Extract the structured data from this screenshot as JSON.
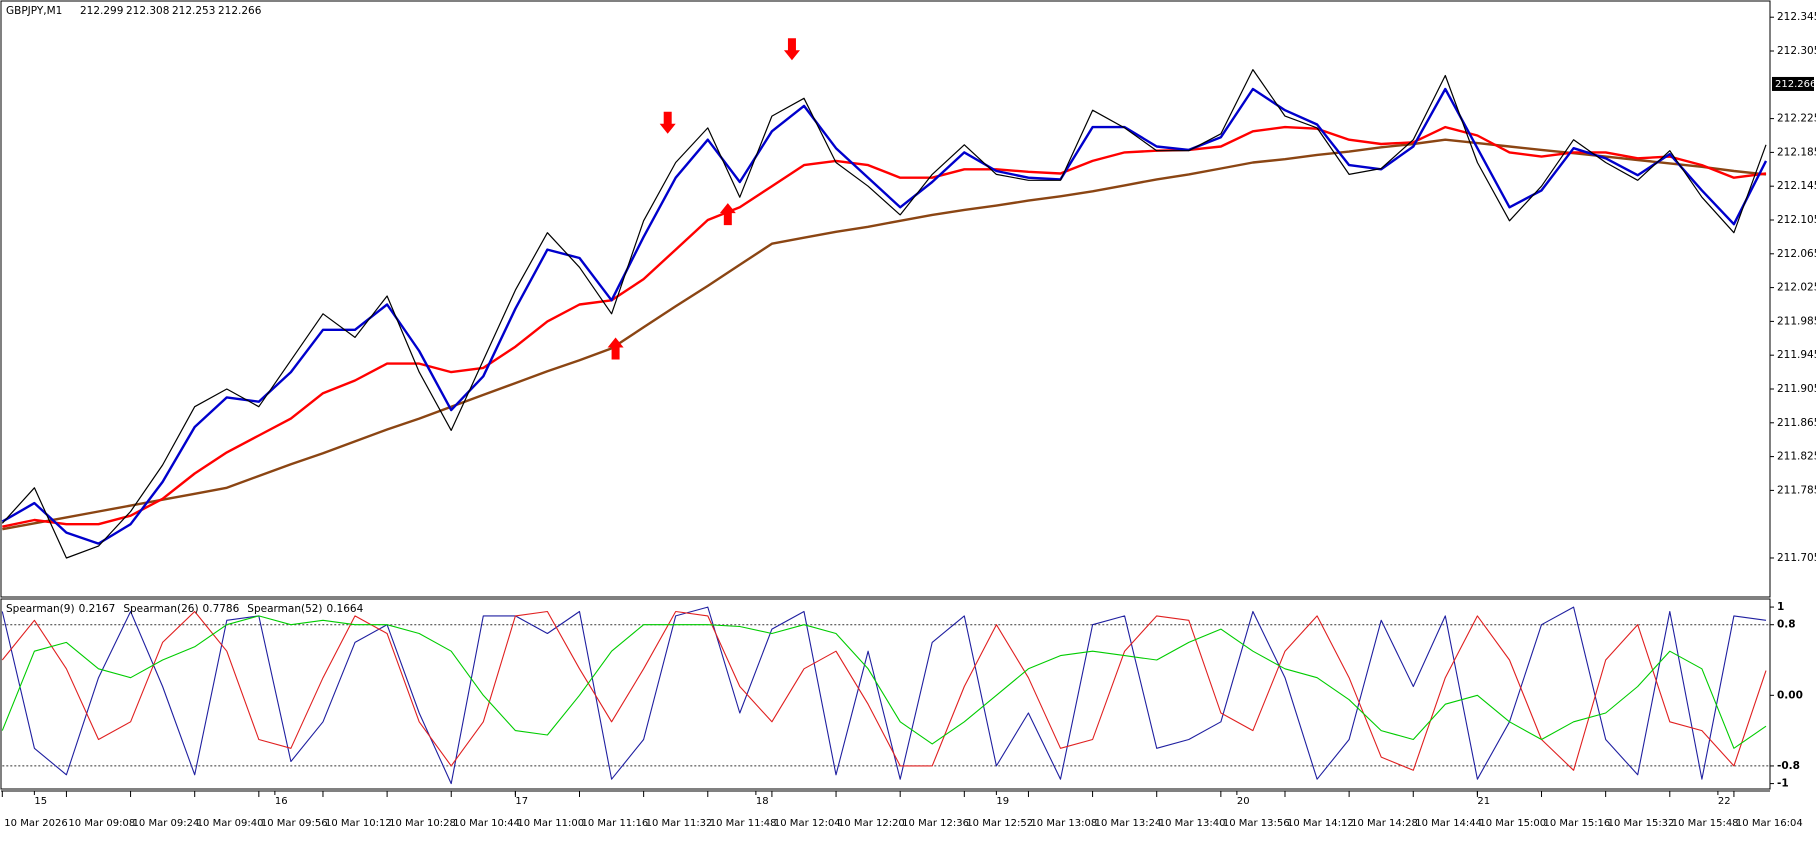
{
  "chart_data": {
    "type": "line",
    "symbol": "GBPJPY,M1",
    "ohlc": [
      212.299,
      212.308,
      212.253,
      212.266
    ],
    "x": [
      0,
      8,
      16,
      24,
      32,
      40,
      48,
      56,
      64,
      72,
      80,
      88,
      96,
      104,
      112,
      120,
      128,
      136,
      144,
      152,
      160,
      168,
      176,
      184,
      192,
      200,
      208,
      216,
      224,
      232,
      240,
      248,
      256,
      264,
      272,
      280,
      288,
      296,
      304,
      312,
      320,
      328,
      336,
      344,
      352,
      360,
      368,
      376,
      384,
      392,
      400,
      408,
      416,
      424,
      432,
      440
    ],
    "xlim": [
      0,
      441
    ],
    "xticks": [
      {
        "value": 0,
        "label": "10 Mar 2026"
      },
      {
        "value": 16,
        "label": "10 Mar 09:08"
      },
      {
        "value": 32,
        "label": "10 Mar 09:24"
      },
      {
        "value": 48,
        "label": "10 Mar 09:40"
      },
      {
        "value": 64,
        "label": "10 Mar 09:56"
      },
      {
        "value": 80,
        "label": "10 Mar 10:12"
      },
      {
        "value": 96,
        "label": "10 Mar 10:28"
      },
      {
        "value": 112,
        "label": "10 Mar 10:44"
      },
      {
        "value": 128,
        "label": "10 Mar 11:00"
      },
      {
        "value": 144,
        "label": "10 Mar 11:16"
      },
      {
        "value": 160,
        "label": "10 Mar 11:32"
      },
      {
        "value": 176,
        "label": "10 Mar 11:48"
      },
      {
        "value": 192,
        "label": "10 Mar 12:04"
      },
      {
        "value": 208,
        "label": "10 Mar 12:20"
      },
      {
        "value": 224,
        "label": "10 Mar 12:36"
      },
      {
        "value": 240,
        "label": "10 Mar 12:52"
      },
      {
        "value": 256,
        "label": "10 Mar 13:08"
      },
      {
        "value": 272,
        "label": "10 Mar 13:24"
      },
      {
        "value": 288,
        "label": "10 Mar 13:40"
      },
      {
        "value": 304,
        "label": "10 Mar 13:56"
      },
      {
        "value": 320,
        "label": "10 Mar 14:12"
      },
      {
        "value": 336,
        "label": "10 Mar 14:28"
      },
      {
        "value": 352,
        "label": "10 Mar 14:44"
      },
      {
        "value": 368,
        "label": "10 Mar 15:00"
      },
      {
        "value": 384,
        "label": "10 Mar 15:16"
      },
      {
        "value": 400,
        "label": "10 Mar 15:32"
      },
      {
        "value": 416,
        "label": "10 Mar 15:48"
      },
      {
        "value": 432,
        "label": "10 Mar 16:04"
      }
    ],
    "xticks_top": [
      {
        "value": 8,
        "label": "15"
      },
      {
        "value": 68,
        "label": "16"
      },
      {
        "value": 128,
        "label": "17"
      },
      {
        "value": 188,
        "label": "18"
      },
      {
        "value": 248,
        "label": "19"
      },
      {
        "value": 308,
        "label": "20"
      },
      {
        "value": 368,
        "label": "21"
      },
      {
        "value": 428,
        "label": "22"
      }
    ],
    "ylim": [
      211.66,
      212.363
    ],
    "yticks": [
      212.345,
      212.305,
      212.225,
      212.185,
      212.145,
      212.105,
      212.065,
      212.025,
      211.985,
      211.945,
      211.905,
      211.865,
      211.825,
      211.785,
      211.705
    ],
    "series": [
      {
        "color": "#8b4513",
        "values": [
          211.739,
          211.746,
          211.753,
          211.76,
          211.767,
          211.774,
          211.781,
          211.788,
          211.802,
          211.816,
          211.829,
          211.843,
          211.857,
          211.87,
          211.884,
          211.898,
          211.912,
          211.926,
          211.939,
          211.953,
          211.978,
          212.003,
          212.027,
          212.052,
          212.077,
          212.084,
          212.091,
          212.097,
          212.104,
          212.111,
          212.117,
          212.122,
          212.128,
          212.133,
          212.139,
          212.146,
          212.153,
          212.159,
          212.166,
          212.173,
          212.177,
          212.182,
          212.186,
          212.191,
          212.195,
          212.2,
          212.196,
          212.192,
          212.188,
          212.184,
          212.18,
          212.176,
          212.172,
          212.168,
          212.163,
          212.159
        ]
      },
      {
        "color": "#ff0000",
        "values": [
          211.742,
          211.75,
          211.745,
          211.745,
          211.755,
          211.775,
          211.805,
          211.83,
          211.85,
          211.87,
          211.9,
          211.915,
          211.935,
          211.935,
          211.925,
          211.93,
          211.955,
          211.985,
          212.005,
          212.01,
          212.035,
          212.07,
          212.105,
          212.12,
          212.145,
          212.17,
          212.175,
          212.17,
          212.155,
          212.155,
          212.165,
          212.165,
          212.162,
          212.16,
          212.175,
          212.185,
          212.187,
          212.188,
          212.192,
          212.21,
          212.215,
          212.213,
          212.2,
          212.195,
          212.197,
          212.215,
          212.205,
          212.185,
          212.18,
          212.185,
          212.185,
          212.178,
          212.18,
          212.17,
          212.155,
          212.16
        ]
      },
      {
        "color": "#0000cc",
        "values": [
          211.748,
          211.77,
          211.735,
          211.722,
          211.745,
          211.795,
          211.86,
          211.895,
          211.89,
          211.925,
          211.975,
          211.975,
          212.005,
          211.95,
          211.88,
          211.92,
          212.0,
          212.07,
          212.06,
          212.01,
          212.085,
          212.155,
          212.2,
          212.15,
          212.21,
          212.24,
          212.19,
          212.155,
          212.12,
          212.15,
          212.185,
          212.163,
          212.155,
          212.153,
          212.215,
          212.215,
          212.192,
          212.188,
          212.203,
          212.26,
          212.235,
          212.218,
          212.17,
          212.165,
          212.192,
          212.26,
          212.19,
          212.12,
          212.14,
          212.19,
          212.178,
          212.158,
          212.183,
          212.14,
          212.1,
          212.175
        ]
      },
      {
        "color": "#000000",
        "values": [
          211.746,
          211.788,
          211.705,
          211.719,
          211.76,
          211.815,
          211.884,
          211.905,
          211.884,
          211.939,
          211.994,
          211.966,
          212.015,
          211.925,
          211.856,
          211.939,
          212.022,
          212.09,
          212.049,
          211.994,
          212.104,
          212.173,
          212.214,
          212.132,
          212.228,
          212.249,
          212.173,
          212.145,
          212.111,
          212.159,
          212.194,
          212.159,
          212.152,
          212.152,
          212.235,
          212.214,
          212.187,
          212.187,
          212.207,
          212.283,
          212.228,
          212.214,
          212.159,
          212.166,
          212.2,
          212.276,
          212.173,
          212.104,
          212.145,
          212.2,
          212.173,
          212.152,
          212.187,
          212.132,
          212.09,
          212.194
        ]
      }
    ],
    "signals": [
      {
        "x": 166,
        "price": 212.207,
        "dir": "down"
      },
      {
        "x": 197,
        "price": 212.294,
        "dir": "down"
      },
      {
        "x": 181,
        "price": 212.125,
        "dir": "up"
      },
      {
        "x": 153,
        "price": 211.966,
        "dir": "up"
      }
    ],
    "indicator": {
      "ylim": [
        -1.05,
        1.08
      ],
      "yticks": [
        1,
        0.8,
        {
          "value": 0,
          "label": "0.00"
        },
        -0.8,
        -1
      ],
      "levels": [
        0.8,
        -0.8
      ],
      "series": [
        {
          "name": "Spearman(9)",
          "current": 0.2167,
          "color": "#1f1fa0",
          "values": [
            0.95,
            -0.6,
            -0.9,
            0.2,
            0.95,
            0.1,
            -0.9,
            0.85,
            0.9,
            -0.75,
            -0.3,
            0.6,
            0.8,
            -0.2,
            -1.0,
            0.9,
            0.9,
            0.7,
            0.95,
            -0.95,
            -0.5,
            0.9,
            1.0,
            -0.2,
            0.75,
            0.95,
            -0.9,
            0.5,
            -0.95,
            0.6,
            0.9,
            -0.8,
            -0.2,
            -0.95,
            0.8,
            0.9,
            -0.6,
            -0.5,
            -0.3,
            0.95,
            0.2,
            -0.95,
            -0.5,
            0.85,
            0.1,
            0.9,
            -0.95,
            -0.3,
            0.8,
            1.0,
            -0.5,
            -0.9,
            0.95,
            -0.95,
            0.9,
            0.85
          ]
        },
        {
          "name": "Spearman(26)",
          "current": 0.7786,
          "color": "#e02020",
          "values": [
            0.4,
            0.85,
            0.3,
            -0.5,
            -0.3,
            0.6,
            0.95,
            0.5,
            -0.5,
            -0.6,
            0.2,
            0.9,
            0.7,
            -0.3,
            -0.8,
            -0.3,
            0.9,
            0.95,
            0.3,
            -0.3,
            0.3,
            0.95,
            0.9,
            0.1,
            -0.3,
            0.3,
            0.5,
            -0.1,
            -0.8,
            -0.8,
            0.1,
            0.8,
            0.2,
            -0.6,
            -0.5,
            0.5,
            0.9,
            0.85,
            -0.2,
            -0.4,
            0.5,
            0.9,
            0.2,
            -0.7,
            -0.85,
            0.2,
            0.9,
            0.4,
            -0.5,
            -0.85,
            0.4,
            0.8,
            -0.3,
            -0.4,
            -0.8,
            0.28
          ]
        },
        {
          "name": "Spearman(52)",
          "current": 0.1664,
          "color": "#00cc00",
          "values": [
            -0.4,
            0.5,
            0.6,
            0.3,
            0.2,
            0.4,
            0.55,
            0.8,
            0.9,
            0.8,
            0.85,
            0.8,
            0.8,
            0.7,
            0.5,
            0.0,
            -0.4,
            -0.45,
            0.0,
            0.5,
            0.8,
            0.8,
            0.8,
            0.78,
            0.7,
            0.8,
            0.7,
            0.3,
            -0.3,
            -0.55,
            -0.3,
            0.0,
            0.3,
            0.45,
            0.5,
            0.45,
            0.4,
            0.6,
            0.75,
            0.5,
            0.3,
            0.2,
            -0.05,
            -0.4,
            -0.5,
            -0.1,
            0.0,
            -0.3,
            -0.5,
            -0.3,
            -0.2,
            0.1,
            0.5,
            0.3,
            -0.6,
            -0.35
          ]
        }
      ]
    }
  }
}
